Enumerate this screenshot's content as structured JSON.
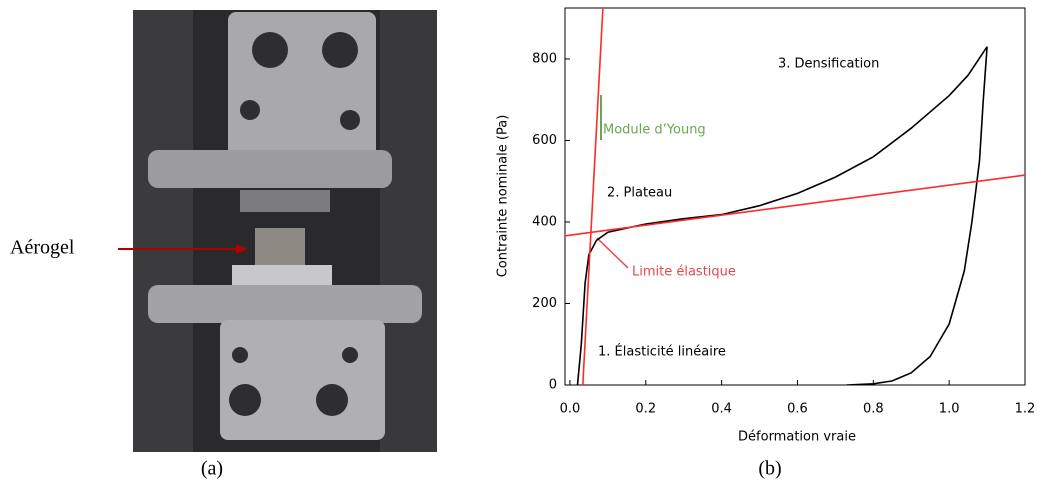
{
  "figure": {
    "photo_label": "Aérogel",
    "captions": [
      "(a)",
      "(b)"
    ]
  },
  "chart_data": {
    "type": "line",
    "xlabel": "Déformation vraie",
    "ylabel": "Contrainte nominale (Pa)",
    "xlim": [
      -0.013,
      1.2
    ],
    "ylim": [
      0,
      925
    ],
    "xticks": [
      {
        "value": 0,
        "label": "0.0"
      },
      0.2,
      0.4,
      0.6,
      0.8,
      {
        "value": 1,
        "label": "1.0"
      },
      1.2
    ],
    "yticks": [
      0,
      200,
      400,
      600,
      800
    ],
    "series": [
      {
        "color": "#000000",
        "x": [
          0.02,
          0.03,
          0.04,
          0.05,
          0.07,
          0.1,
          0.15,
          0.2,
          0.3,
          0.4,
          0.5,
          0.6,
          0.7,
          0.8,
          0.9,
          1.0,
          1.05,
          1.1
        ],
        "values": [
          0,
          100,
          250,
          320,
          355,
          375,
          385,
          395,
          408,
          418,
          440,
          470,
          510,
          560,
          630,
          710,
          760,
          830
        ]
      },
      {
        "color": "#000000",
        "x": [
          1.1,
          1.09,
          1.08,
          1.06,
          1.04,
          1.0,
          0.95,
          0.9,
          0.85,
          0.8,
          0.73
        ],
        "values": [
          830,
          700,
          550,
          400,
          280,
          150,
          70,
          30,
          10,
          3,
          0
        ]
      },
      {
        "color": "#ff2a2a",
        "x": [
          0.034,
          0.087
        ],
        "values": [
          0,
          925
        ]
      },
      {
        "color": "#ff2a2a",
        "x": [
          -0.013,
          1.2
        ],
        "values": [
          366,
          515
        ]
      }
    ],
    "annotations": [
      "1. Élasticité linéaire",
      "2. Plateau",
      "3. Densification",
      "Module d’Young",
      "Limite élastique"
    ],
    "annotation_colors": [
      "#000000",
      "#000000",
      "#000000",
      "#6aa84f",
      "#e8474c"
    ]
  }
}
